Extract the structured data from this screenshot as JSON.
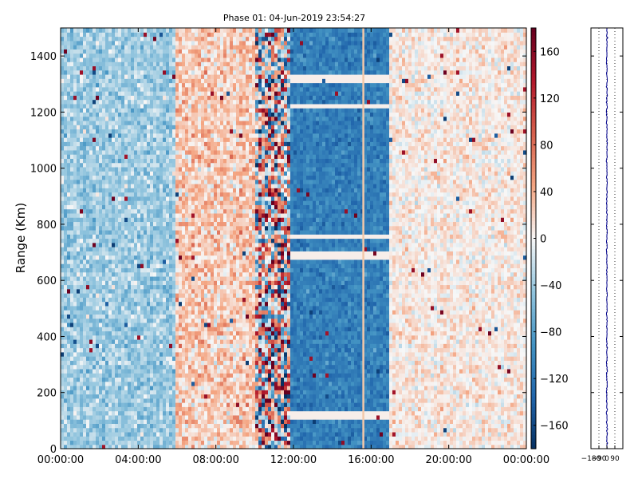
{
  "chart_data": [
    {
      "type": "heatmap",
      "title": "Phase 01: 04-Jun-2019 23:54:27",
      "xlabel": "",
      "ylabel": "Range (Km)",
      "x_ticks": [
        "00:00:00",
        "04:00:00",
        "08:00:00",
        "12:00:00",
        "16:00:00",
        "20:00:00",
        "00:00:00"
      ],
      "x_tick_hours": [
        0,
        4,
        8,
        12,
        16,
        20,
        24
      ],
      "xlim_hours": [
        0,
        24
      ],
      "y_ticks": [
        0,
        200,
        400,
        600,
        800,
        1000,
        1200,
        1400
      ],
      "ylim": [
        0,
        1500
      ],
      "colorbar": {
        "ticks": [
          160,
          120,
          80,
          40,
          0,
          -40,
          -80,
          -120,
          -160
        ],
        "range": [
          -180,
          180
        ],
        "colormap": "RdBu_r",
        "colors": {
          "low": "#053061",
          "mid": "#f7f7f7",
          "high": "#67001f"
        }
      },
      "regions": [
        {
          "from_hour": 0.0,
          "to_hour": 6.0,
          "mean_phase": -40,
          "noise": 25
        },
        {
          "from_hour": 6.0,
          "to_hour": 10.0,
          "mean_phase": 25,
          "noise": 30
        },
        {
          "from_hour": 10.0,
          "to_hour": 11.8,
          "mean_phase": 10,
          "noise": 140
        },
        {
          "from_hour": 11.8,
          "to_hour": 17.0,
          "mean_phase": -110,
          "noise": 20
        },
        {
          "from_hour": 17.0,
          "to_hour": 24.0,
          "mean_phase": 8,
          "noise": 20
        }
      ],
      "vertical_lines_hours": [
        15.6
      ],
      "horizontal_gaps_km": [
        120,
        690,
        760,
        1220,
        1320
      ],
      "grid": false
    },
    {
      "type": "line",
      "x_ticks": [
        "-180",
        "-90",
        "0",
        "90"
      ],
      "x_tick_values": [
        -180,
        -90,
        0,
        90
      ],
      "xlim": [
        -180,
        180
      ],
      "ylim": [
        0,
        1500
      ],
      "mean_phase": 0,
      "line_color": "#00008b",
      "grid": "vertical dotted"
    }
  ]
}
